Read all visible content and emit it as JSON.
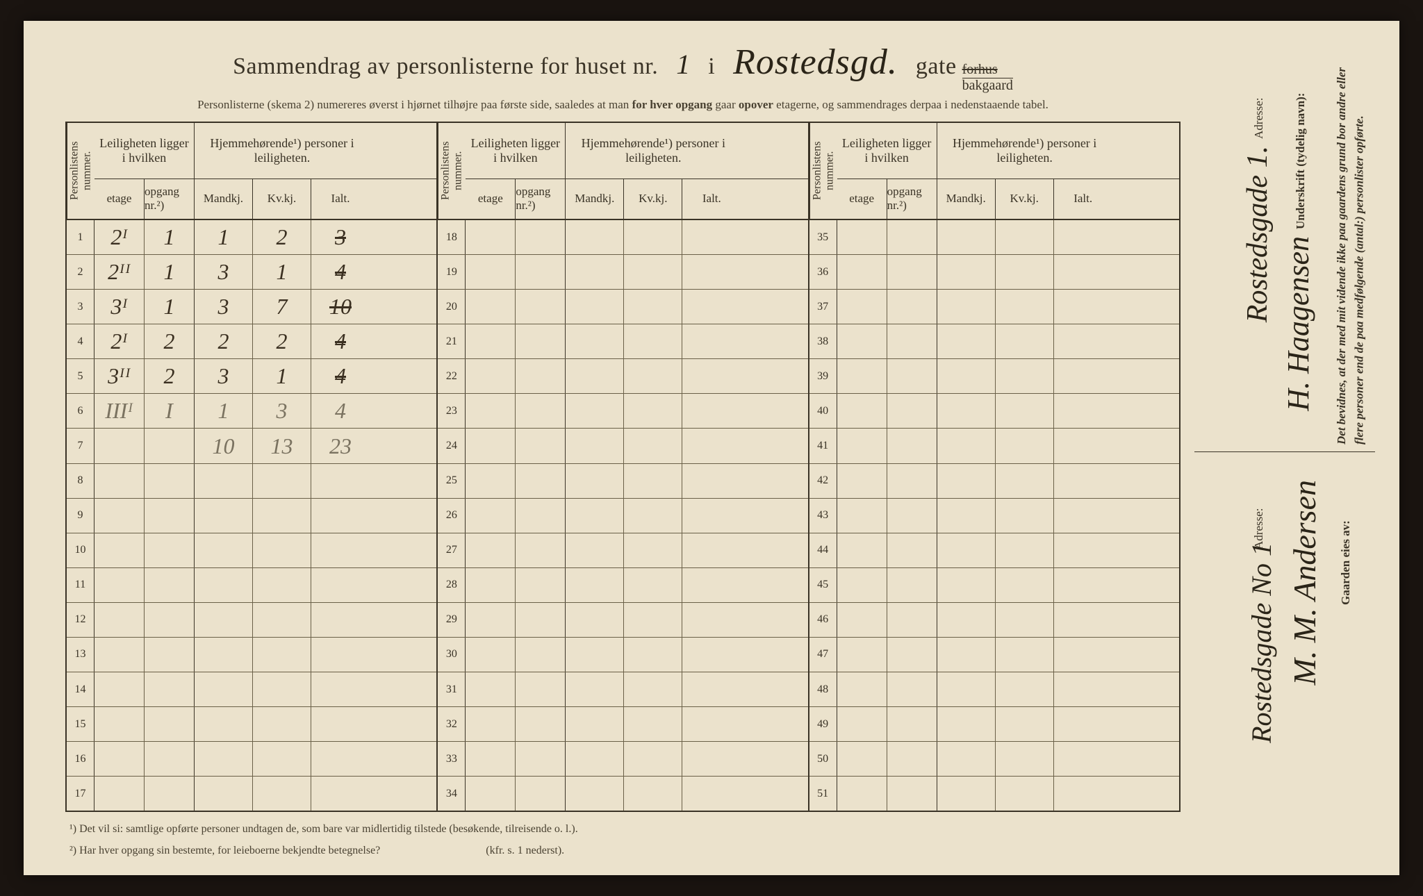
{
  "title": {
    "prefix": "Sammendrag av personlisterne for huset nr.",
    "house_nr": "1",
    "mid": "i",
    "street": "Rostedsgd.",
    "suffix": "gate",
    "forhus": "forhus",
    "bakgaard": "bakgaard"
  },
  "subtitle": "Personlisterne (skema 2) numereres øverst i hjørnet tilhøjre paa første side, saaledes at man for hver opgang gaar opover etagerne, og sammendrages derpaa i nedenstaaende tabel.",
  "headers": {
    "personlistens": "Personlistens nummer.",
    "leiligheten": "Leiligheten ligger i hvilken",
    "hjemme": "Hjemmehørende¹) personer i leiligheten.",
    "etage": "etage",
    "opgang": "opgang nr.²)",
    "mandkj": "Mandkj.",
    "kvkj": "Kv.kj.",
    "ialt": "Ialt."
  },
  "rows": [
    {
      "n": "1",
      "etage": "2ᴵ",
      "opgang": "1",
      "m": "1",
      "k": "2",
      "i": "3",
      "pencil": false,
      "struck_i": true
    },
    {
      "n": "2",
      "etage": "2ᴵᴵ",
      "opgang": "1",
      "m": "3",
      "k": "1",
      "i": "4",
      "pencil": false,
      "struck_i": true
    },
    {
      "n": "3",
      "etage": "3ᴵ",
      "opgang": "1",
      "m": "3",
      "k": "7",
      "i": "10",
      "pencil": false,
      "struck_i": true
    },
    {
      "n": "4",
      "etage": "2ᴵ",
      "opgang": "2",
      "m": "2",
      "k": "2",
      "i": "4",
      "pencil": false,
      "struck_i": true
    },
    {
      "n": "5",
      "etage": "3ᴵᴵ",
      "opgang": "2",
      "m": "3",
      "k": "1",
      "i": "4",
      "pencil": false,
      "struck_i": true
    },
    {
      "n": "6",
      "etage": "IIIᴵ",
      "opgang": "I",
      "m": "1",
      "k": "3",
      "i": "4",
      "pencil": true,
      "struck_i": false
    },
    {
      "n": "7",
      "etage": "",
      "opgang": "",
      "m": "10",
      "k": "13",
      "i": "23",
      "pencil": true,
      "struck_i": false
    },
    {
      "n": "8"
    },
    {
      "n": "9"
    },
    {
      "n": "10"
    },
    {
      "n": "11"
    },
    {
      "n": "12"
    },
    {
      "n": "13"
    },
    {
      "n": "14"
    },
    {
      "n": "15"
    },
    {
      "n": "16"
    },
    {
      "n": "17"
    }
  ],
  "rows2_start": 18,
  "rows3_start": 35,
  "footnotes": {
    "f1": "¹) Det vil si: samtlige opførte personer undtagen de, som bare var midlertidig tilstede (besøkende, tilreisende o. l.).",
    "f2": "²) Har hver opgang sin bestemte, for leieboerne bekjendte betegnelse?",
    "f2_ref": "(kfr. s. 1 nederst)."
  },
  "right": {
    "bevidnes": "Det bevidnes, at der med mit vidende ikke paa gaardens grund bor andre eller flere personer end de paa medfølgende (antal:) personlister opførte.",
    "underskrift_label": "Underskrift (tydelig navn):",
    "underskrift_value": "H. Haagensen",
    "adresse_label": "Adresse:",
    "adresse_value": "Rostedsgade 1.",
    "gaarden_label": "Gaarden eies av:",
    "gaarden_value": "M. M. Andersen",
    "owner_adresse_label": "Adresse:",
    "owner_adresse_value": "Rostedsgade No 1"
  },
  "colors": {
    "paper": "#ebe2cc",
    "ink": "#3a3326",
    "handwriting": "#2a2418",
    "pencil": "#7a7260",
    "border": "#3a3326"
  }
}
